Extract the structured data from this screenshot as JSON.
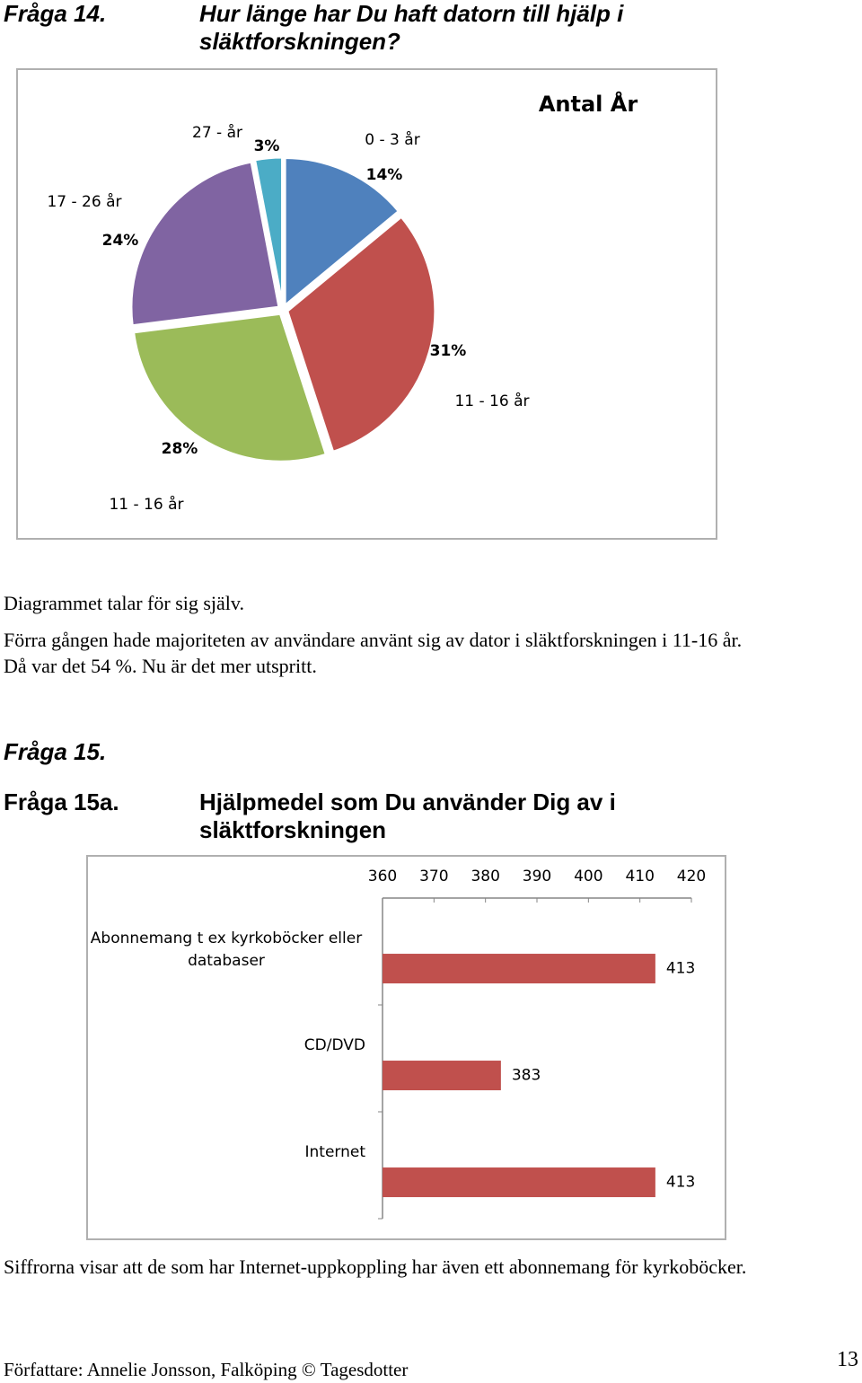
{
  "heading14": {
    "label": "Fråga 14.",
    "question": "Hur länge har Du haft datorn till hjälp i släktforskningen?"
  },
  "chart_data": [
    {
      "type": "pie",
      "title": "Antal År",
      "categories": [
        "0 - 3 år",
        "11 - 16 år",
        "11 - 16 år",
        "17 - 26 år",
        "27 -  år"
      ],
      "values": [
        14,
        31,
        28,
        24,
        3
      ],
      "value_labels": [
        "14%",
        "31%",
        "28%",
        "24%",
        "3%"
      ],
      "colors": [
        "#4f81bd",
        "#c0504d",
        "#9bbb59",
        "#8064a2",
        "#4bacc6"
      ]
    },
    {
      "type": "barh",
      "categories": [
        "Abonnemang t ex kyrkoböcker eller databaser",
        "CD/DVD",
        "Internet"
      ],
      "values": [
        413,
        383,
        413
      ],
      "color": "#c0504d",
      "xlim": [
        360,
        420
      ],
      "xticks": [
        360,
        370,
        380,
        390,
        400,
        410,
        420
      ]
    }
  ],
  "paragraph14": [
    "Diagrammet talar för sig själv.",
    "Förra gången hade majoriteten av användare använt sig av dator i släktforskningen i 11-16 år. Då var det 54 %. Nu är det mer utspritt."
  ],
  "heading15": "Fråga 15.",
  "heading15a": {
    "label": "Fråga 15a.",
    "question": "Hjälpmedel som Du använder Dig av i släktforskningen"
  },
  "paragraph15a": "Siffrorna visar att de som har Internet-uppkoppling har även ett abonnemang för kyrkoböcker.",
  "footer": {
    "author": "Författare: Annelie Jonsson, Falköping © Tagesdotter",
    "page_number": "13"
  }
}
